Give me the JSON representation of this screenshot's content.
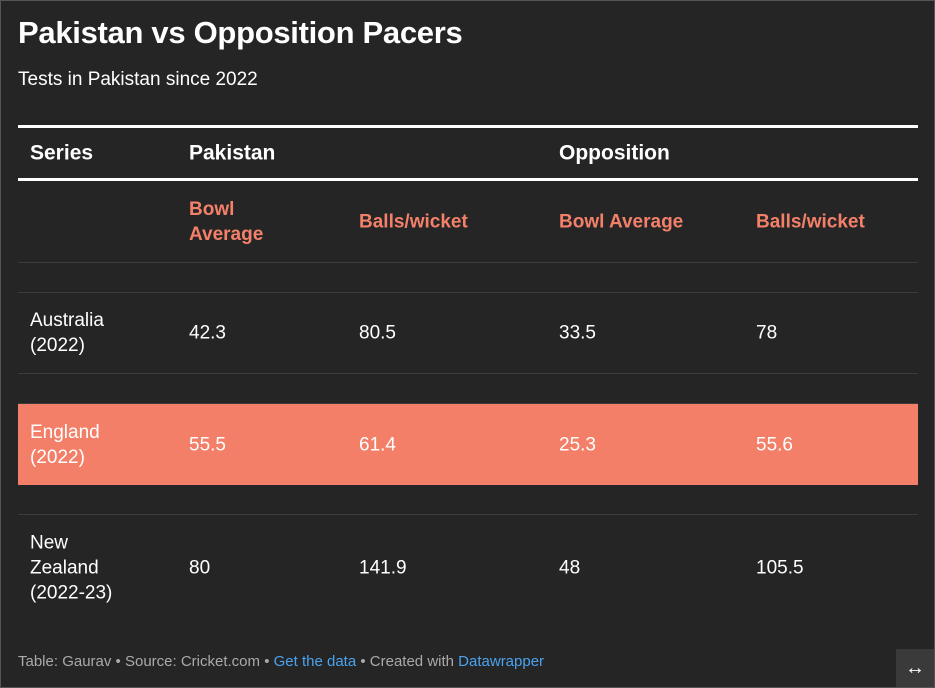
{
  "title": "Pakistan vs Opposition Pacers",
  "subtitle": "Tests in Pakistan since 2022",
  "header": {
    "series": "Series",
    "pakistan": "Pakistan",
    "opposition": "Opposition"
  },
  "subheader": [
    "Bowl Average",
    "Balls/wicket",
    "Bowl Average",
    "Balls/wicket"
  ],
  "rows": [
    {
      "series": "Australia (2022)",
      "values": [
        "42.3",
        "80.5",
        "33.5",
        "78"
      ],
      "highlight": false
    },
    {
      "series": "England (2022)",
      "values": [
        "55.5",
        "61.4",
        "25.3",
        "55.6"
      ],
      "highlight": true
    },
    {
      "series": "New Zealand (2022-23)",
      "values": [
        "80",
        "141.9",
        "48",
        "105.5"
      ],
      "highlight": false
    }
  ],
  "footer": {
    "table": "Table: Gaurav",
    "source": "Source: Cricket.com",
    "sep": " • ",
    "get_data": "Get the data",
    "created": "Created with",
    "datawrapper": "Datawrapper"
  },
  "expand_icon": "↔",
  "colors": {
    "accent": "#f4806a",
    "highlight": "#f47f68",
    "link": "#4aa3f0"
  }
}
